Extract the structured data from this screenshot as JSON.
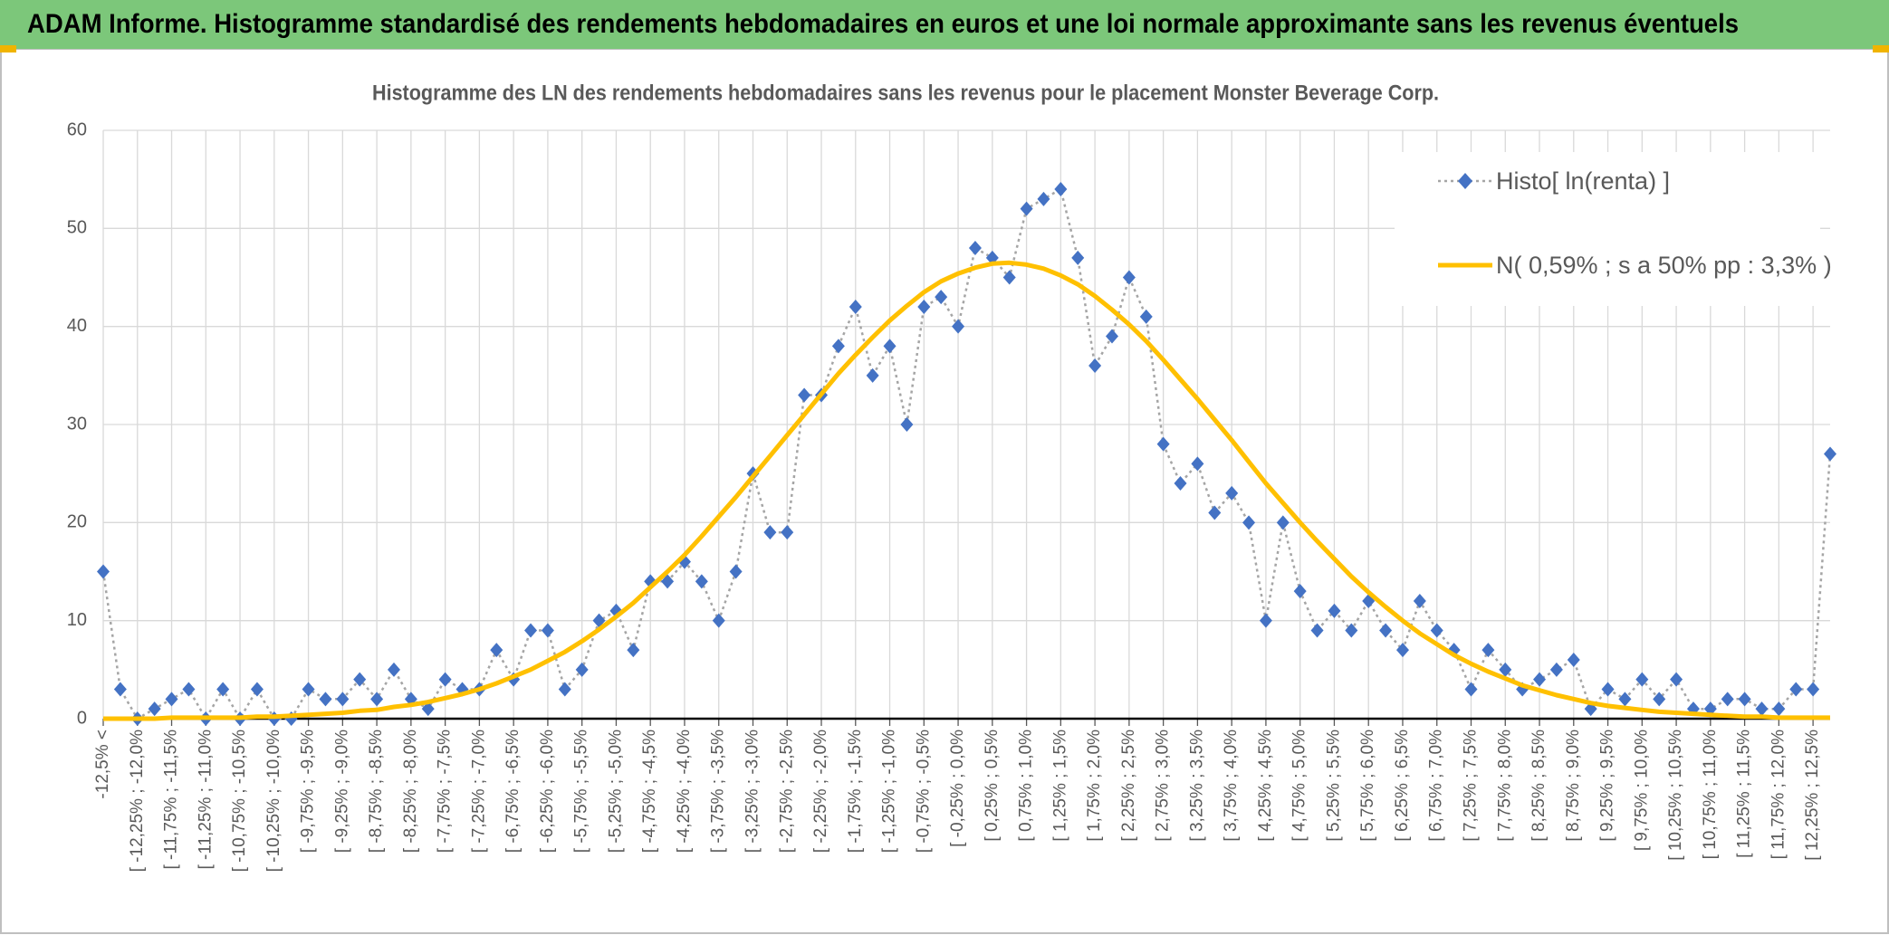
{
  "header": {
    "title": "ADAM Informe. Histogramme standardisé des rendements hebdomadaires en euros et une loi normale approximante sans les revenus éventuels"
  },
  "chart_data": {
    "type": "line",
    "title": "Histogramme des LN des rendements hebdomadaires sans les revenus pour le placement Monster Beverage Corp.",
    "categories": [
      "-12,5% <",
      null,
      "[ -12,25% ; -12,0%",
      null,
      "[ -11,75% ; -11,5%",
      null,
      "[ -11,25% ; -11,0%",
      null,
      "[ -10,75% ; -10,5%",
      null,
      "[ -10,25% ; -10,0%",
      null,
      "[ -9,75% ; -9,5%",
      null,
      "[ -9,25% ; -9,0%",
      null,
      "[ -8,75% ; -8,5%",
      null,
      "[ -8,25% ; -8,0%",
      null,
      "[ -7,75% ; -7,5%",
      null,
      "[ -7,25% ; -7,0%",
      null,
      "[ -6,75% ; -6,5%",
      null,
      "[ -6,25% ; -6,0%",
      null,
      "[ -5,75% ; -5,5%",
      null,
      "[ -5,25% ; -5,0%",
      null,
      "[ -4,75% ; -4,5%",
      null,
      "[ -4,25% ; -4,0%",
      null,
      "[ -3,75% ; -3,5%",
      null,
      "[ -3,25% ; -3,0%",
      null,
      "[ -2,75% ; -2,5%",
      null,
      "[ -2,25% ; -2,0%",
      null,
      "[ -1,75% ; -1,5%",
      null,
      "[ -1,25% ; -1,0%",
      null,
      "[ -0,75% ; -0,5%",
      null,
      "[ -0,25% ; 0,0%",
      null,
      "[ 0,25% ; 0,5%",
      null,
      "[ 0,75% ; 1,0%",
      null,
      "[ 1,25% ; 1,5%",
      null,
      "[ 1,75% ; 2,0%",
      null,
      "[ 2,25% ; 2,5%",
      null,
      "[ 2,75% ; 3,0%",
      null,
      "[ 3,25% ; 3,5%",
      null,
      "[ 3,75% ; 4,0%",
      null,
      "[ 4,25% ; 4,5%",
      null,
      "[ 4,75% ; 5,0%",
      null,
      "[ 5,25% ; 5,5%",
      null,
      "[ 5,75% ; 6,0%",
      null,
      "[ 6,25% ; 6,5%",
      null,
      "[ 6,75% ; 7,0%",
      null,
      "[ 7,25% ; 7,5%",
      null,
      "[ 7,75% ; 8,0%",
      null,
      "[ 8,25% ; 8,5%",
      null,
      "[ 8,75% ; 9,0%",
      null,
      "[ 9,25% ; 9,5%",
      null,
      "[ 9,75% ; 10,0%",
      null,
      "[ 10,25% ; 10,5%",
      null,
      "[ 10,75% ; 11,0%",
      null,
      "[ 11,25% ; 11,5%",
      null,
      "[ 11,75% ; 12,0%",
      null,
      "[ 12,25% ; 12,5%",
      null
    ],
    "series": [
      {
        "name": "Histo[ ln(renta) ]",
        "color": "#4472c4",
        "line_color": "#a5a5a5",
        "marker": "diamond",
        "line_style": "dotted",
        "values": [
          15,
          3,
          0,
          1,
          2,
          3,
          0,
          3,
          0,
          3,
          0,
          0,
          3,
          2,
          2,
          4,
          2,
          5,
          2,
          1,
          4,
          3,
          3,
          7,
          4,
          9,
          9,
          3,
          5,
          10,
          11,
          7,
          14,
          14,
          16,
          14,
          10,
          15,
          25,
          19,
          19,
          33,
          33,
          38,
          42,
          35,
          38,
          30,
          42,
          43,
          40,
          48,
          47,
          45,
          52,
          53,
          54,
          47,
          36,
          39,
          45,
          41,
          28,
          24,
          26,
          21,
          23,
          20,
          10,
          20,
          13,
          9,
          11,
          9,
          12,
          9,
          7,
          12,
          9,
          7,
          3,
          7,
          5,
          3,
          4,
          5,
          6,
          1,
          3,
          2,
          4,
          2,
          4,
          1,
          1,
          2,
          2,
          1,
          1,
          3,
          3,
          27
        ]
      },
      {
        "name": "N( 0,59% ; s a 50% pp : 3,3% )",
        "color": "#ffc000",
        "marker": "none",
        "line_style": "solid",
        "values": [
          0.0,
          0.0,
          0.0,
          0.0,
          0.1,
          0.1,
          0.1,
          0.1,
          0.1,
          0.2,
          0.2,
          0.3,
          0.4,
          0.5,
          0.6,
          0.8,
          0.9,
          1.2,
          1.4,
          1.7,
          2.1,
          2.5,
          3.0,
          3.6,
          4.3,
          5.0,
          5.9,
          6.8,
          7.9,
          9.1,
          10.4,
          11.8,
          13.4,
          15.0,
          16.7,
          18.6,
          20.6,
          22.6,
          24.7,
          26.8,
          28.9,
          31.0,
          33.1,
          35.2,
          37.1,
          38.9,
          40.6,
          42.1,
          43.5,
          44.6,
          45.4,
          46.0,
          46.4,
          46.5,
          46.3,
          45.9,
          45.2,
          44.3,
          43.1,
          41.7,
          40.2,
          38.5,
          36.6,
          34.6,
          32.6,
          30.5,
          28.4,
          26.2,
          24.0,
          22.0,
          20.0,
          18.1,
          16.3,
          14.5,
          12.9,
          11.4,
          10.0,
          8.7,
          7.6,
          6.5,
          5.6,
          4.8,
          4.1,
          3.4,
          2.9,
          2.4,
          2.0,
          1.6,
          1.3,
          1.1,
          0.9,
          0.7,
          0.6,
          0.5,
          0.4,
          0.3,
          0.2,
          0.2,
          0.1,
          0.1,
          0.1,
          0.1
        ]
      }
    ],
    "ylim": [
      0,
      60
    ],
    "yticks": [
      0,
      10,
      20,
      30,
      40,
      50,
      60
    ],
    "grid": true,
    "legend": "top-right"
  }
}
